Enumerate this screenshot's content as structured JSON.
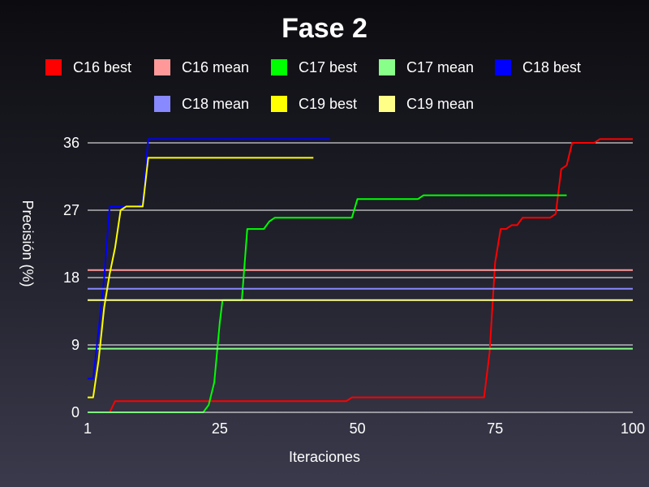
{
  "chart_data": {
    "type": "line",
    "title": "Fase 2",
    "xlabel": "Iteraciones",
    "ylabel": "Precisión (%)",
    "xlim": [
      1,
      100
    ],
    "ylim": [
      0,
      36
    ],
    "x_ticks": [
      "1",
      "25",
      "50",
      "75",
      "100"
    ],
    "y_ticks": [
      "0",
      "9",
      "18",
      "27",
      "36"
    ],
    "grid": "horizontal",
    "legend_position": "top",
    "series": [
      {
        "name": "C16 best",
        "color": "#ff0000",
        "x": [
          1,
          5,
          6,
          24,
          48,
          49,
          72,
          73,
          74,
          75,
          76,
          77,
          78,
          79,
          80,
          81,
          85,
          86,
          87,
          88,
          89,
          90,
          93,
          94,
          95,
          100
        ],
        "y": [
          0,
          0,
          1.5,
          1.5,
          1.5,
          2,
          2,
          2,
          8,
          20,
          24.5,
          24.5,
          25,
          25,
          26,
          26,
          26,
          26.5,
          32.5,
          33,
          36,
          36,
          36,
          36.5,
          36.5,
          36.5
        ]
      },
      {
        "name": "C16 mean",
        "color": "#ff9999",
        "x": [
          1,
          100
        ],
        "y": [
          19,
          19
        ]
      },
      {
        "name": "C17 best",
        "color": "#00ff00",
        "x": [
          1,
          22,
          23,
          24,
          25,
          25.5,
          29,
          30,
          33,
          34,
          35,
          36,
          37,
          49,
          50,
          51,
          61,
          62,
          63,
          88
        ],
        "y": [
          0,
          0,
          1,
          4,
          12,
          15,
          15,
          24.5,
          24.5,
          25.5,
          26,
          26,
          26,
          26,
          28.5,
          28.5,
          28.5,
          29,
          29,
          29
        ]
      },
      {
        "name": "C17 mean",
        "color": "#88ff88",
        "x": [
          1,
          100
        ],
        "y": [
          8.5,
          8.5
        ]
      },
      {
        "name": "C18 best",
        "color": "#0000ff",
        "x": [
          1,
          2,
          3,
          4,
          5,
          10,
          11,
          12,
          45
        ],
        "y": [
          4.5,
          4.5,
          11,
          18,
          27.5,
          27.5,
          28,
          36.5,
          36.5
        ]
      },
      {
        "name": "C18 mean",
        "color": "#8888ff",
        "x": [
          1,
          100
        ],
        "y": [
          16.5,
          16.5
        ]
      },
      {
        "name": "C19 best",
        "color": "#ffff00",
        "x": [
          1,
          2,
          3,
          4,
          5,
          6,
          7,
          8,
          11,
          12,
          42
        ],
        "y": [
          2,
          2,
          7,
          14,
          18.5,
          22,
          27,
          27.5,
          27.5,
          34,
          34
        ]
      },
      {
        "name": "C19 mean",
        "color": "#ffff88",
        "x": [
          1,
          100
        ],
        "y": [
          15,
          15
        ]
      }
    ]
  }
}
